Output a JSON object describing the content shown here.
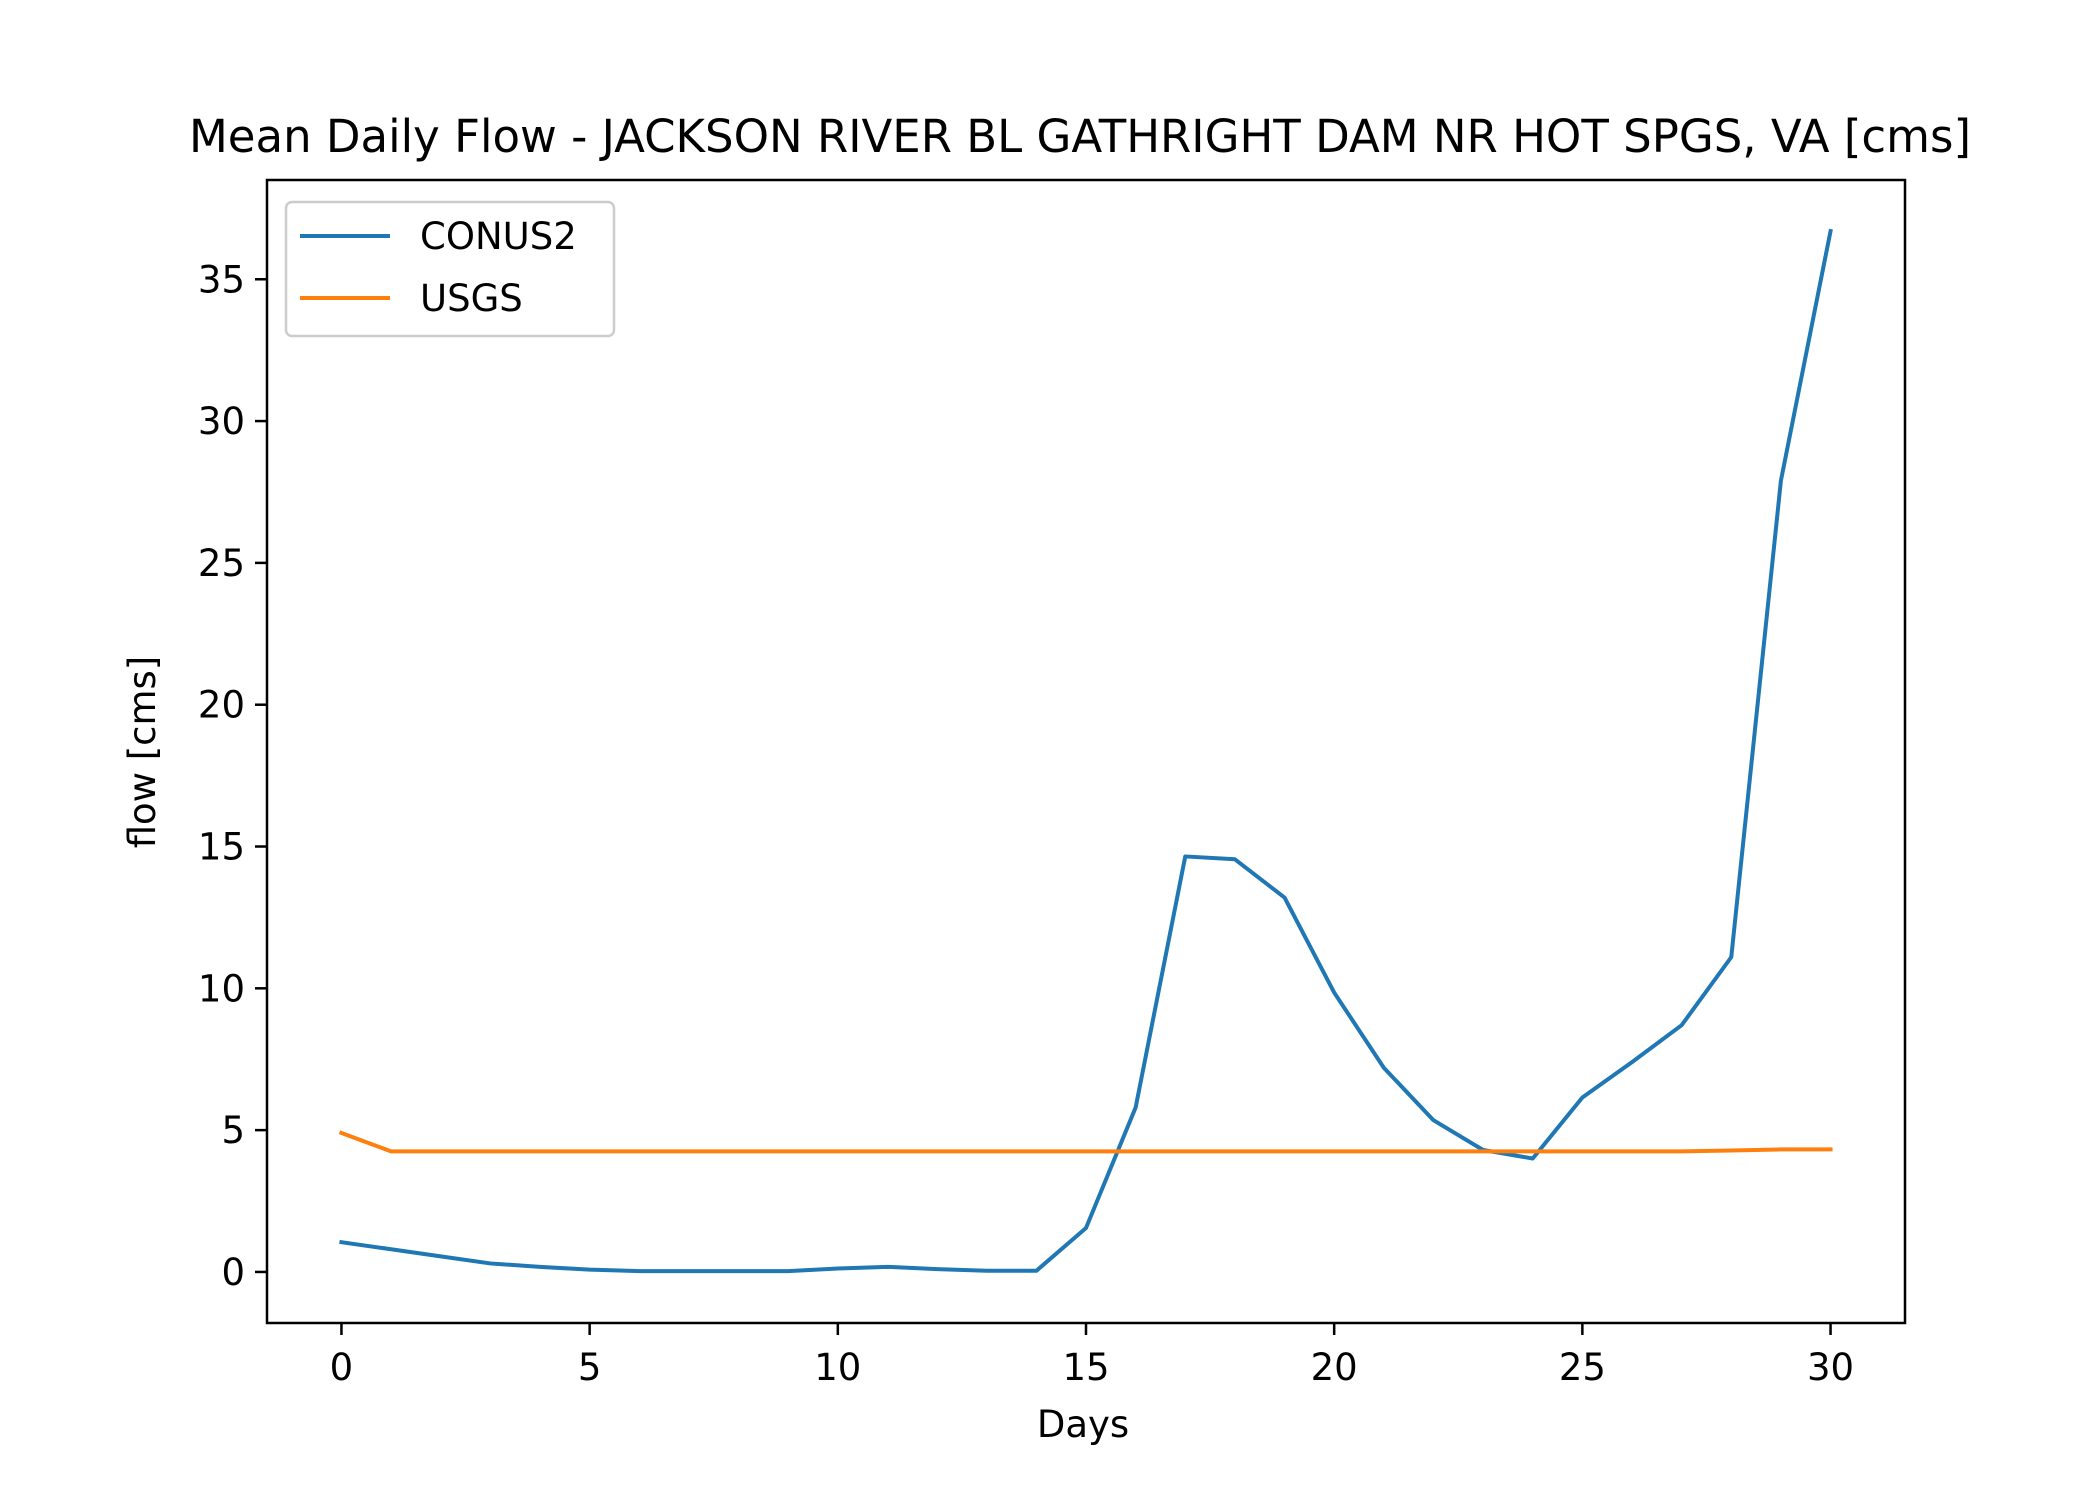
{
  "chart_data": {
    "type": "line",
    "title": "Mean Daily Flow - JACKSON RIVER BL GATHRIGHT DAM NR HOT SPGS, VA [cms]",
    "xlabel": "Days",
    "ylabel": "flow [cms]",
    "xlim": [
      -1.5,
      31.5
    ],
    "ylim": [
      -1.8,
      38.5
    ],
    "xticks": [
      0,
      5,
      10,
      15,
      20,
      25,
      30
    ],
    "yticks": [
      0,
      5,
      10,
      15,
      20,
      25,
      30,
      35
    ],
    "grid": false,
    "legend_position": "upper left",
    "x": [
      0,
      1,
      2,
      3,
      4,
      5,
      6,
      7,
      8,
      9,
      10,
      11,
      12,
      13,
      14,
      15,
      16,
      17,
      18,
      19,
      20,
      21,
      22,
      23,
      24,
      25,
      26,
      27,
      28,
      29,
      30
    ],
    "series": [
      {
        "name": "CONUS2",
        "color": "#1f77b4",
        "values": [
          1.05,
          0.8,
          0.55,
          0.3,
          0.18,
          0.08,
          0.03,
          0.03,
          0.03,
          0.03,
          0.12,
          0.18,
          0.1,
          0.04,
          0.04,
          1.55,
          5.8,
          14.65,
          14.55,
          13.2,
          9.85,
          7.2,
          5.35,
          4.3,
          4.0,
          6.15,
          7.4,
          8.7,
          11.1,
          27.9,
          36.7
        ]
      },
      {
        "name": "USGS",
        "color": "#ff7f0e",
        "values": [
          4.9,
          4.25,
          4.25,
          4.25,
          4.25,
          4.25,
          4.25,
          4.25,
          4.25,
          4.25,
          4.25,
          4.25,
          4.25,
          4.25,
          4.25,
          4.25,
          4.25,
          4.25,
          4.25,
          4.25,
          4.25,
          4.25,
          4.25,
          4.25,
          4.25,
          4.25,
          4.25,
          4.25,
          4.28,
          4.32,
          4.32
        ]
      }
    ]
  }
}
